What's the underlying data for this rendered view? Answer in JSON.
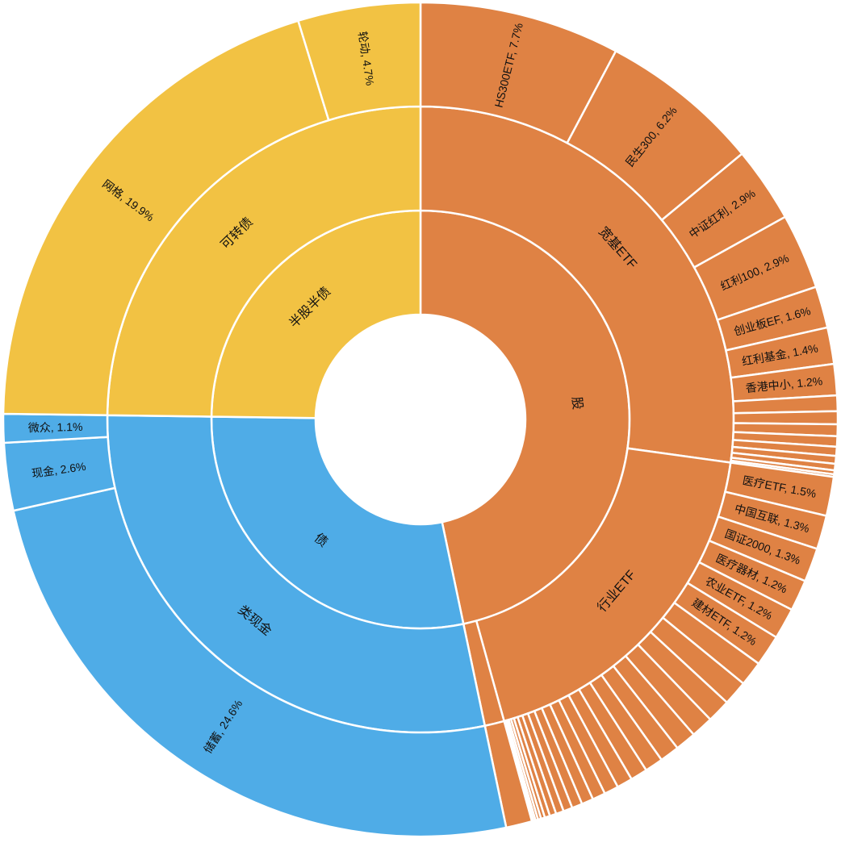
{
  "colors": {
    "stock": "#DF8244",
    "half": "#F2C243",
    "bond": "#4FACE7",
    "stroke": "#ffffff",
    "text": "#111111"
  },
  "chart_data": {
    "type": "sunburst",
    "title": "",
    "start_angle_deg": 0,
    "direction": "clockwise",
    "nodes": [
      {
        "name": "股",
        "label": "股",
        "color": "stock",
        "children": [
          {
            "name": "宽基ETF",
            "label": "宽基ETF",
            "children": [
              {
                "name": "HS300ETF",
                "label": "HS300ETF, 7.7%",
                "value": 7.7
              },
              {
                "name": "民生300",
                "label": "民生300, 6.2%",
                "value": 6.2
              },
              {
                "name": "中证红利",
                "label": "中证红利, 2.9%",
                "value": 2.9
              },
              {
                "name": "红利100",
                "label": "红利100, 2.9%",
                "value": 2.9
              },
              {
                "name": "创业板EF",
                "label": "创业板EF, 1.6%",
                "value": 1.6
              },
              {
                "name": "红利基金",
                "label": "红利基金, 1.4%",
                "value": 1.4
              },
              {
                "name": "香港中小",
                "label": "香港中小, 1.2%",
                "value": 1.2
              },
              {
                "name": "",
                "label": "",
                "value": 0.6
              },
              {
                "name": "",
                "label": "",
                "value": 0.5
              },
              {
                "name": "",
                "label": "",
                "value": 0.45
              },
              {
                "name": "",
                "label": "",
                "value": 0.4
              },
              {
                "name": "",
                "label": "",
                "value": 0.35
              },
              {
                "name": "",
                "label": "",
                "value": 0.3
              },
              {
                "name": "",
                "label": "",
                "value": 0.25
              },
              {
                "name": "",
                "label": "",
                "value": 0.15
              },
              {
                "name": "",
                "label": "",
                "value": 0.1
              }
            ]
          },
          {
            "name": "行业ETF",
            "label": "行业ETF",
            "children": [
              {
                "name": "医疗ETF",
                "label": "医疗ETF, 1.5%",
                "value": 1.5
              },
              {
                "name": "中国互联",
                "label": "中国互联, 1.3%",
                "value": 1.3
              },
              {
                "name": "国证2000",
                "label": "国证2000, 1.3%",
                "value": 1.3
              },
              {
                "name": "医疗器材",
                "label": "医疗器材, 1.2%",
                "value": 1.2
              },
              {
                "name": "农业ETF",
                "label": "农业ETF, 1.2%",
                "value": 1.2
              },
              {
                "name": "建材ETF",
                "label": "建材ETF, 1.2%",
                "value": 1.2
              },
              {
                "name": "",
                "label": "",
                "value": 0.95
              },
              {
                "name": "",
                "label": "",
                "value": 0.95
              },
              {
                "name": "",
                "label": "",
                "value": 0.9
              },
              {
                "name": "",
                "label": "",
                "value": 0.85
              },
              {
                "name": "",
                "label": "",
                "value": 0.8
              },
              {
                "name": "",
                "label": "",
                "value": 0.75
              },
              {
                "name": "",
                "label": "",
                "value": 0.7
              },
              {
                "name": "",
                "label": "",
                "value": 0.65
              },
              {
                "name": "",
                "label": "",
                "value": 0.6
              },
              {
                "name": "",
                "label": "",
                "value": 0.55
              },
              {
                "name": "",
                "label": "",
                "value": 0.5
              },
              {
                "name": "",
                "label": "",
                "value": 0.45
              },
              {
                "name": "",
                "label": "",
                "value": 0.4
              },
              {
                "name": "",
                "label": "",
                "value": 0.35
              },
              {
                "name": "",
                "label": "",
                "value": 0.3
              },
              {
                "name": "",
                "label": "",
                "value": 0.25
              },
              {
                "name": "",
                "label": "",
                "value": 0.2
              },
              {
                "name": "",
                "label": "",
                "value": 0.15
              },
              {
                "name": "",
                "label": "",
                "value": 0.12
              },
              {
                "name": "",
                "label": "",
                "value": 0.1
              },
              {
                "name": "",
                "label": "",
                "value": 0.08
              },
              {
                "name": "",
                "label": "",
                "value": 0.06
              }
            ]
          },
          {
            "name": "",
            "label": "",
            "children": [
              {
                "name": "",
                "label": "",
                "value": 1.0
              }
            ]
          }
        ]
      },
      {
        "name": "债",
        "label": "债",
        "color": "bond",
        "children": [
          {
            "name": "类现金",
            "label": "类现金",
            "children": [
              {
                "name": "储蓄",
                "label": "储蓄, 24.6%",
                "value": 24.6
              },
              {
                "name": "现金",
                "label": "现金, 2.6%",
                "value": 2.6
              },
              {
                "name": "微众",
                "label": "微众, 1.1%",
                "value": 1.1
              }
            ]
          }
        ]
      },
      {
        "name": "半股半债",
        "label": "半股半债",
        "color": "half",
        "children": [
          {
            "name": "可转债",
            "label": "可转债",
            "children": [
              {
                "name": "网格",
                "label": "网格, 19.9%",
                "value": 19.9
              },
              {
                "name": "轮动",
                "label": "轮动, 4.7%",
                "value": 4.7
              }
            ]
          }
        ]
      }
    ]
  }
}
